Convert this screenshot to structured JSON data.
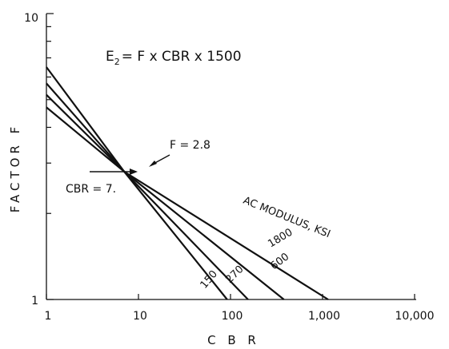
{
  "chart_data": {
    "type": "line",
    "xscale": "log",
    "yscale": "log",
    "xlim": [
      1,
      10000
    ],
    "ylim": [
      1,
      10
    ],
    "xlabel": "C B R",
    "ylabel": "FACTOR F",
    "x_ticks": [
      "1",
      "10",
      "100",
      "1,000",
      "10,000"
    ],
    "y_ticks": [
      "1",
      "10"
    ],
    "equation": {
      "main": "E",
      "sub": "2",
      "rest": "= F x CBR x 1500"
    },
    "series_group_label": "AC MODULUS, KSI",
    "series": [
      {
        "name": "150",
        "points": [
          [
            1,
            6.5
          ],
          [
            7,
            2.8
          ],
          [
            92,
            1
          ]
        ]
      },
      {
        "name": "270",
        "points": [
          [
            1,
            5.7
          ],
          [
            7,
            2.8
          ],
          [
            155,
            1
          ]
        ]
      },
      {
        "name": "600",
        "points": [
          [
            1,
            5.2
          ],
          [
            7,
            2.8
          ],
          [
            380,
            1
          ]
        ]
      },
      {
        "name": "1800",
        "points": [
          [
            1,
            4.7
          ],
          [
            7,
            2.8
          ],
          [
            1150,
            1
          ]
        ]
      }
    ],
    "annotations": [
      {
        "text": "F = 2.8",
        "x": 7,
        "y": 2.8
      },
      {
        "text": "CBR = 7.",
        "x": 7,
        "y": 2.8
      }
    ],
    "grid": false,
    "line_color": "#111111"
  }
}
